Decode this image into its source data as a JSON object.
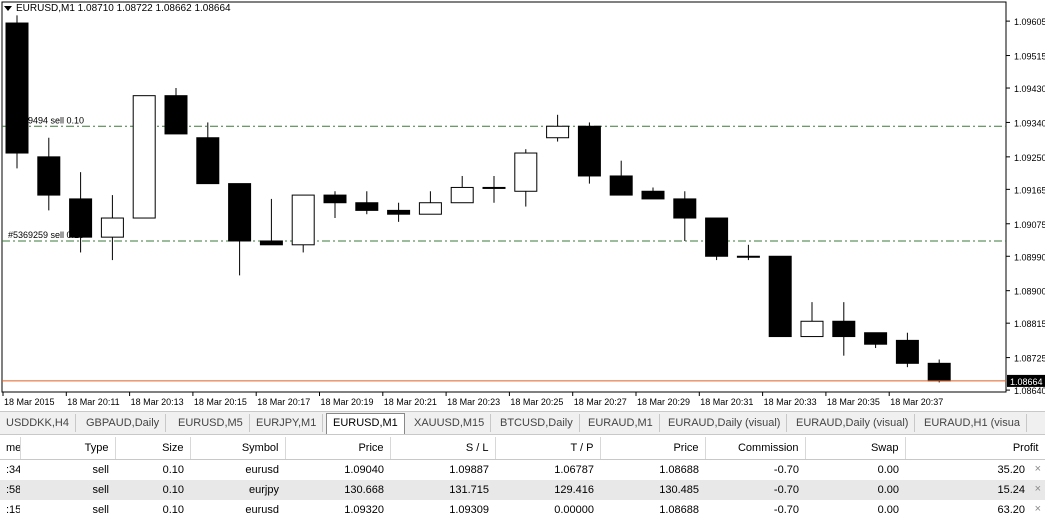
{
  "chart": {
    "title": "EURUSD,M1  1.08710 1.08722 1.08662 1.08664",
    "price_labels": [
      {
        "text": "1.09605",
        "price": 1.09605
      },
      {
        "text": "1.09515",
        "price": 1.09515
      },
      {
        "text": "1.09430",
        "price": 1.0943
      },
      {
        "text": "1.09340",
        "price": 1.0934
      },
      {
        "text": "1.09250",
        "price": 1.0925
      },
      {
        "text": "1.09165",
        "price": 1.09165
      },
      {
        "text": "1.09075",
        "price": 1.09075
      },
      {
        "text": "1.08990",
        "price": 1.0899
      },
      {
        "text": "1.08900",
        "price": 1.089
      },
      {
        "text": "1.08815",
        "price": 1.08815
      },
      {
        "text": "1.08725",
        "price": 1.08725
      },
      {
        "text": "1.08640",
        "price": 1.0864
      }
    ],
    "current_price_label": "1.08664",
    "order_lines": [
      {
        "label": "#5369494 sell 0.10",
        "price": 1.0933,
        "color": "#3a7a3a"
      },
      {
        "label": "#5369259 sell 0.10",
        "price": 1.0903,
        "color": "#3a7a3a"
      }
    ],
    "current_line_color": "#e06020",
    "time_labels": [
      "18 Mar 2015",
      "18 Mar 20:11",
      "18 Mar 20:13",
      "18 Mar 20:15",
      "18 Mar 20:17",
      "18 Mar 20:19",
      "18 Mar 20:21",
      "18 Mar 20:23",
      "18 Mar 20:25",
      "18 Mar 20:27",
      "18 Mar 20:29",
      "18 Mar 20:31",
      "18 Mar 20:33",
      "18 Mar 20:35",
      "18 Mar 20:37"
    ]
  },
  "chart_data": {
    "type": "candlestick",
    "symbol": "EURUSD",
    "timeframe": "M1",
    "ohlc": [
      {
        "o": 1.096,
        "h": 1.0962,
        "l": 1.0922,
        "c": 1.0926
      },
      {
        "o": 1.0925,
        "h": 1.093,
        "l": 1.0911,
        "c": 1.0915
      },
      {
        "o": 1.0914,
        "h": 1.0921,
        "l": 1.09,
        "c": 1.0904
      },
      {
        "o": 1.0904,
        "h": 1.0915,
        "l": 1.0898,
        "c": 1.0909
      },
      {
        "o": 1.0909,
        "h": 1.0941,
        "l": 1.0909,
        "c": 1.0941
      },
      {
        "o": 1.0941,
        "h": 1.0943,
        "l": 1.0931,
        "c": 1.0931
      },
      {
        "o": 1.093,
        "h": 1.0934,
        "l": 1.0918,
        "c": 1.0918
      },
      {
        "o": 1.0918,
        "h": 1.0918,
        "l": 1.0894,
        "c": 1.0903
      },
      {
        "o": 1.0903,
        "h": 1.0914,
        "l": 1.0902,
        "c": 1.0902
      },
      {
        "o": 1.0902,
        "h": 1.0915,
        "l": 1.09,
        "c": 1.0915
      },
      {
        "o": 1.0915,
        "h": 1.0916,
        "l": 1.0909,
        "c": 1.0913
      },
      {
        "o": 1.0913,
        "h": 1.0916,
        "l": 1.091,
        "c": 1.0911
      },
      {
        "o": 1.0911,
        "h": 1.0913,
        "l": 1.0908,
        "c": 1.091
      },
      {
        "o": 1.091,
        "h": 1.0916,
        "l": 1.091,
        "c": 1.0913
      },
      {
        "o": 1.0913,
        "h": 1.092,
        "l": 1.0913,
        "c": 1.0917
      },
      {
        "o": 1.0917,
        "h": 1.092,
        "l": 1.0913,
        "c": 1.0917
      },
      {
        "o": 1.0916,
        "h": 1.0927,
        "l": 1.0912,
        "c": 1.0926
      },
      {
        "o": 1.093,
        "h": 1.0936,
        "l": 1.0929,
        "c": 1.0933
      },
      {
        "o": 1.0933,
        "h": 1.0934,
        "l": 1.0918,
        "c": 1.092
      },
      {
        "o": 1.092,
        "h": 1.0924,
        "l": 1.0915,
        "c": 1.0915
      },
      {
        "o": 1.0916,
        "h": 1.0917,
        "l": 1.0914,
        "c": 1.0914
      },
      {
        "o": 1.0914,
        "h": 1.0916,
        "l": 1.0903,
        "c": 1.0909
      },
      {
        "o": 1.0909,
        "h": 1.0909,
        "l": 1.0898,
        "c": 1.0899
      },
      {
        "o": 1.0899,
        "h": 1.0902,
        "l": 1.0898,
        "c": 1.0899
      },
      {
        "o": 1.0899,
        "h": 1.0899,
        "l": 1.0878,
        "c": 1.0878
      },
      {
        "o": 1.0878,
        "h": 1.0887,
        "l": 1.0878,
        "c": 1.0882
      },
      {
        "o": 1.0882,
        "h": 1.0887,
        "l": 1.0873,
        "c": 1.0878
      },
      {
        "o": 1.0879,
        "h": 1.0879,
        "l": 1.0875,
        "c": 1.0876
      },
      {
        "o": 1.0877,
        "h": 1.0879,
        "l": 1.087,
        "c": 1.0871
      },
      {
        "o": 1.0871,
        "h": 1.0872,
        "l": 1.0866,
        "c": 1.08664
      }
    ],
    "ylim": [
      1.08635,
      1.09655
    ],
    "grid": false
  },
  "tabs": [
    {
      "label": "USDDKK,H4"
    },
    {
      "label": "GBPAUD,Daily"
    },
    {
      "label": "EURUSD,M5"
    },
    {
      "label": "EURJPY,M1"
    },
    {
      "label": "EURUSD,M1",
      "active": true
    },
    {
      "label": "XAUUSD,M15"
    },
    {
      "label": "BTCUSD,Daily"
    },
    {
      "label": "EURAUD,M1"
    },
    {
      "label": "EURAUD,Daily (visual)"
    },
    {
      "label": "EURAUD,Daily (visual)"
    },
    {
      "label": "EURAUD,H1 (visua"
    }
  ],
  "trades": {
    "columns": [
      "me",
      "Type",
      "Size",
      "Symbol",
      "Price",
      "S / L",
      "T / P",
      "Price",
      "Commission",
      "Swap",
      "Profit"
    ],
    "rows": [
      [
        ":34",
        "sell",
        "0.10",
        "eurusd",
        "1.09040",
        "1.09887",
        "1.06787",
        "1.08688",
        "-0.70",
        "0.00",
        "35.20"
      ],
      [
        ":58",
        "sell",
        "0.10",
        "eurjpy",
        "130.668",
        "131.715",
        "129.416",
        "130.485",
        "-0.70",
        "0.00",
        "15.24"
      ],
      [
        ":15",
        "sell",
        "0.10",
        "eurusd",
        "1.09320",
        "1.09309",
        "0.00000",
        "1.08688",
        "-0.70",
        "0.00",
        "63.20"
      ]
    ],
    "close_glyph": "×"
  }
}
